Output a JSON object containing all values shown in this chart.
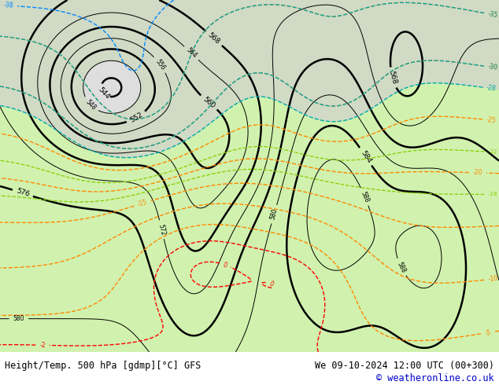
{
  "title_left": "Height/Temp. 500 hPa [gdmp][°C] GFS",
  "title_right": "We 09-10-2024 12:00 UTC (00+300)",
  "copyright": "© weatheronline.co.uk",
  "copyright_color": "#0000cc",
  "footer_text_color": "#000000",
  "bottom_bar_height": 42,
  "figsize": [
    6.34,
    4.9
  ],
  "dpi": 100,
  "green_fill": "#c8f0a0",
  "map_bg": "#d0d0d0",
  "text_font_size": 8.5,
  "copyright_font_size": 8.5
}
